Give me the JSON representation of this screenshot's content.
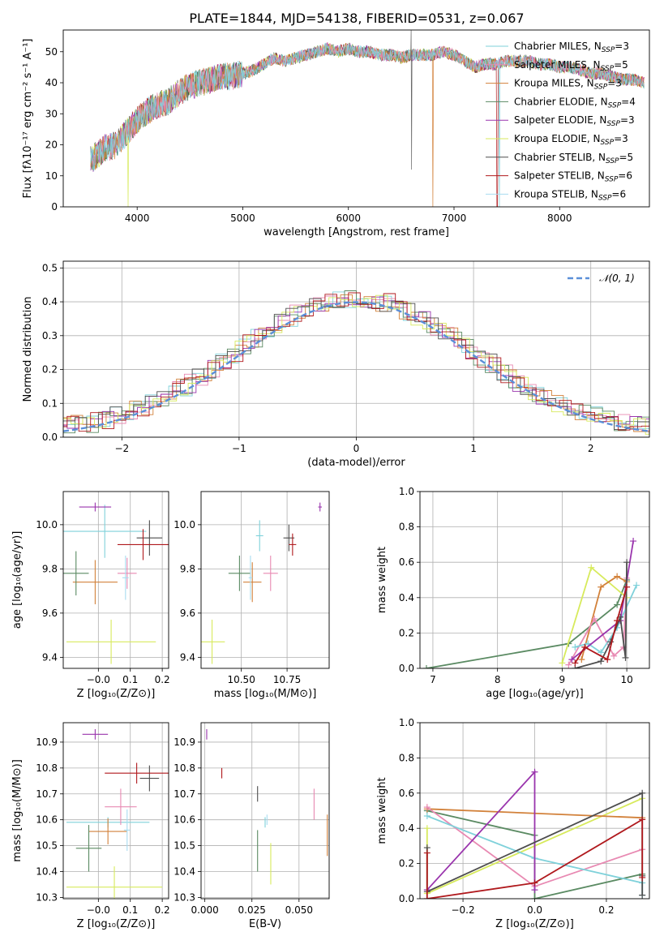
{
  "colors": {
    "c0": "#7fd1da",
    "c1": "#e889b2",
    "c2": "#d2813a",
    "c3": "#5a8a62",
    "c4": "#9a35ad",
    "c5": "#d7ea5c",
    "c6": "#4d4d4d",
    "c7": "#b0191d",
    "c8": "#a8dcf0",
    "gaussian": "#5b8fd8"
  },
  "chart_data": [
    {
      "id": "spectrum",
      "type": "line",
      "title": "PLATE=1844, MJD=54138, FIBERID=0531, z=0.067",
      "xlabel": "wavelength [Angstrom, rest frame]",
      "ylabel": "Flux [fλ10⁻¹⁷ erg cm⁻² s⁻¹ A⁻¹]",
      "xlim": [
        3300,
        8850
      ],
      "ylim": [
        0,
        57
      ],
      "xticks": [
        4000,
        5000,
        6000,
        7000,
        8000
      ],
      "yticks": [
        0,
        10,
        20,
        30,
        40,
        50
      ],
      "legend": "top-right",
      "legend_entries": [
        {
          "main": "Chabrier MILES, N",
          "sub": "SSP",
          "val": "=3",
          "color": "c0"
        },
        {
          "main": "Salpeter MILES, N",
          "sub": "SSP",
          "val": "=5",
          "color": "c1"
        },
        {
          "main": "Kroupa MILES, N",
          "sub": "SSP",
          "val": "=3",
          "color": "c2"
        },
        {
          "main": "Chabrier ELODIE, N",
          "sub": "SSP",
          "val": "=4",
          "color": "c3"
        },
        {
          "main": "Salpeter ELODIE, N",
          "sub": "SSP",
          "val": "=3",
          "color": "c4"
        },
        {
          "main": "Kroupa ELODIE, N",
          "sub": "SSP",
          "val": "=3",
          "color": "c5"
        },
        {
          "main": "Chabrier STELIB, N",
          "sub": "SSP",
          "val": "=5",
          "color": "c6"
        },
        {
          "main": "Salpeter STELIB, N",
          "sub": "SSP",
          "val": "=6",
          "color": "c7"
        },
        {
          "main": "Kroupa STELIB, N",
          "sub": "SSP",
          "val": "=6",
          "color": "c8"
        }
      ],
      "continuum": [
        [
          3560,
          15
        ],
        [
          3700,
          19
        ],
        [
          3800,
          20
        ],
        [
          3900,
          24
        ],
        [
          4000,
          28
        ],
        [
          4100,
          31
        ],
        [
          4200,
          33
        ],
        [
          4300,
          34
        ],
        [
          4400,
          37
        ],
        [
          4500,
          39
        ],
        [
          4600,
          40
        ],
        [
          4700,
          41
        ],
        [
          4800,
          42
        ],
        [
          4900,
          42
        ],
        [
          5000,
          43
        ],
        [
          5100,
          44
        ],
        [
          5200,
          46
        ],
        [
          5300,
          48
        ],
        [
          5400,
          47
        ],
        [
          5500,
          48
        ],
        [
          5600,
          49
        ],
        [
          5700,
          50
        ],
        [
          5800,
          51
        ],
        [
          5900,
          50
        ],
        [
          6000,
          51
        ],
        [
          6100,
          50
        ],
        [
          6200,
          50
        ],
        [
          6300,
          49
        ],
        [
          6400,
          49
        ],
        [
          6500,
          48
        ],
        [
          6600,
          49
        ],
        [
          6700,
          49
        ],
        [
          6800,
          49
        ],
        [
          6900,
          50
        ],
        [
          7000,
          49
        ],
        [
          7100,
          47
        ],
        [
          7200,
          45
        ],
        [
          7300,
          46
        ],
        [
          7400,
          46
        ],
        [
          7500,
          47
        ],
        [
          7600,
          47
        ],
        [
          7700,
          47
        ],
        [
          7800,
          46
        ],
        [
          7900,
          46
        ],
        [
          8000,
          45
        ],
        [
          8100,
          45
        ],
        [
          8200,
          44
        ],
        [
          8300,
          43
        ],
        [
          8400,
          43
        ],
        [
          8500,
          42
        ],
        [
          8600,
          41
        ],
        [
          8700,
          41
        ],
        [
          8800,
          40
        ]
      ]
    },
    {
      "id": "residuals",
      "type": "line",
      "xlabel": "(data-model)/error",
      "ylabel": "Normed distribution",
      "xlim": [
        -2.5,
        2.5
      ],
      "ylim": [
        0,
        0.52
      ],
      "xticks": [
        -2,
        -1,
        0,
        1,
        2
      ],
      "xtick_labels": [
        "−2",
        "−1",
        "0",
        "1",
        "2"
      ],
      "yticks": [
        0.0,
        0.1,
        0.2,
        0.3,
        0.4,
        0.5
      ],
      "ytick_labels": [
        "0.0",
        "0.1",
        "0.2",
        "0.3",
        "0.4",
        "0.5"
      ],
      "legend": "top-right",
      "legend_label": "𝒩(0, 1)"
    },
    {
      "id": "age-vs-Z",
      "type": "scatter",
      "xlabel": "Z [log₁₀(Z/Z⊙)]",
      "ylabel": "age  [log₁₀(age/yr)]",
      "xlim": [
        -0.11,
        0.22
      ],
      "ylim": [
        9.35,
        10.15
      ],
      "xticks": [
        0.0,
        0.1,
        0.2
      ],
      "xtick_labels": [
        "−0.0",
        "0.1",
        "0.2"
      ],
      "yticks": [
        9.4,
        9.6,
        9.8,
        10.0
      ],
      "ytick_labels": [
        "9.4",
        "9.6",
        "9.8",
        "10.0"
      ],
      "points": [
        {
          "color": "c0",
          "x": 0.02,
          "xe": 0.13,
          "y": 9.97,
          "ye": 0.12
        },
        {
          "color": "c1",
          "x": 0.09,
          "xe": 0.03,
          "y": 9.78,
          "ye": 0.07
        },
        {
          "color": "c2",
          "x": -0.01,
          "xe": 0.07,
          "y": 9.74,
          "ye": 0.1
        },
        {
          "color": "c3",
          "x": -0.07,
          "xe": 0.04,
          "y": 9.78,
          "ye": 0.1
        },
        {
          "color": "c4",
          "x": -0.01,
          "xe": 0.05,
          "y": 10.08,
          "ye": 0.02
        },
        {
          "color": "c5",
          "x": 0.04,
          "xe": 0.14,
          "y": 9.47,
          "ye": 0.1
        },
        {
          "color": "c6",
          "x": 0.16,
          "xe": 0.04,
          "y": 9.94,
          "ye": 0.08
        },
        {
          "color": "c7",
          "x": 0.14,
          "xe": 0.08,
          "y": 9.91,
          "ye": 0.07
        },
        {
          "color": "c8",
          "x": 0.085,
          "xe": 0.01,
          "y": 9.76,
          "ye": 0.1
        }
      ]
    },
    {
      "id": "age-vs-mass",
      "type": "scatter",
      "xlabel": "mass [log₁₀(M/M⊙)]",
      "ylabel": "",
      "xlim": [
        10.28,
        10.98
      ],
      "ylim": [
        9.35,
        10.15
      ],
      "xticks": [
        10.5,
        10.75
      ],
      "xtick_labels": [
        "10.50",
        "10.75"
      ],
      "yticks": [
        9.4,
        9.6,
        9.8,
        10.0
      ],
      "ytick_labels": [
        "9.4",
        "9.6",
        "9.8",
        "10.0"
      ],
      "points": [
        {
          "color": "c0",
          "x": 10.6,
          "xe": 0.02,
          "y": 9.95,
          "ye": 0.07
        },
        {
          "color": "c1",
          "x": 10.66,
          "xe": 0.04,
          "y": 9.78,
          "ye": 0.08
        },
        {
          "color": "c2",
          "x": 10.56,
          "xe": 0.05,
          "y": 9.74,
          "ye": 0.09
        },
        {
          "color": "c3",
          "x": 10.49,
          "xe": 0.06,
          "y": 9.78,
          "ye": 0.08
        },
        {
          "color": "c4",
          "x": 10.93,
          "xe": 0.01,
          "y": 10.08,
          "ye": 0.02
        },
        {
          "color": "c5",
          "x": 10.34,
          "xe": 0.07,
          "y": 9.47,
          "ye": 0.1
        },
        {
          "color": "c6",
          "x": 10.76,
          "xe": 0.03,
          "y": 9.94,
          "ye": 0.06
        },
        {
          "color": "c7",
          "x": 10.78,
          "xe": 0.02,
          "y": 9.91,
          "ye": 0.05
        },
        {
          "color": "c8",
          "x": 10.55,
          "xe": 0.01,
          "y": 9.76,
          "ye": 0.1
        }
      ]
    },
    {
      "id": "weight-vs-age",
      "type": "line",
      "xlabel": "age  [log₁₀(age/yr)]",
      "ylabel": "mass weight",
      "xlim": [
        6.8,
        10.35
      ],
      "ylim": [
        0,
        1.0
      ],
      "xticks": [
        7,
        8,
        9,
        10
      ],
      "xtick_labels": [
        "7",
        "8",
        "9",
        "10"
      ],
      "yticks": [
        0.0,
        0.2,
        0.4,
        0.6,
        0.8,
        1.0
      ],
      "ytick_labels": [
        "0.0",
        "0.2",
        "0.4",
        "0.6",
        "0.8",
        "1.0"
      ],
      "series": [
        {
          "color": "c3",
          "x": [
            6.9,
            9.1,
            9.85,
            10.0
          ],
          "y": [
            0.0,
            0.14,
            0.36,
            0.5
          ]
        },
        {
          "color": "c5",
          "x": [
            9.0,
            9.45,
            10.0
          ],
          "y": [
            0.03,
            0.57,
            0.4
          ]
        },
        {
          "color": "c2",
          "x": [
            9.3,
            9.6,
            9.85,
            10.0
          ],
          "y": [
            0.05,
            0.46,
            0.52,
            0.49
          ]
        },
        {
          "color": "c1",
          "x": [
            9.1,
            9.5,
            9.8,
            9.95,
            10.0
          ],
          "y": [
            0.02,
            0.28,
            0.07,
            0.12,
            0.51
          ]
        },
        {
          "color": "c0",
          "x": [
            9.2,
            9.4,
            9.6,
            9.85,
            10.15
          ],
          "y": [
            0.12,
            0.14,
            0.09,
            0.23,
            0.47
          ]
        },
        {
          "color": "c4",
          "x": [
            9.15,
            9.9,
            10.1
          ],
          "y": [
            0.05,
            0.27,
            0.72
          ]
        },
        {
          "color": "c6",
          "x": [
            9.2,
            9.6,
            9.75,
            9.9,
            9.98,
            10.0
          ],
          "y": [
            0.0,
            0.04,
            0.15,
            0.29,
            0.06,
            0.6
          ]
        },
        {
          "color": "c7",
          "x": [
            9.2,
            9.35,
            9.7,
            9.85,
            10.0
          ],
          "y": [
            0.03,
            0.12,
            0.05,
            0.27,
            0.46
          ]
        }
      ]
    },
    {
      "id": "mass-vs-Z",
      "type": "scatter",
      "xlabel": "Z [log₁₀(Z/Z⊙)]",
      "ylabel": "mass [log₁₀(M/M⊙)]",
      "xlim": [
        -0.11,
        0.22
      ],
      "ylim": [
        10.295,
        10.975
      ],
      "xticks": [
        0.0,
        0.1,
        0.2
      ],
      "xtick_labels": [
        "−0.0",
        "0.1",
        "0.2"
      ],
      "yticks": [
        10.3,
        10.4,
        10.5,
        10.6,
        10.7,
        10.8,
        10.9
      ],
      "ytick_labels": [
        "10.3",
        "10.4",
        "10.5",
        "10.6",
        "10.7",
        "10.8",
        "10.9"
      ],
      "points": [
        {
          "color": "c0",
          "x": 0.03,
          "xe": 0.13,
          "y": 10.59,
          "ye": 0.02
        },
        {
          "color": "c1",
          "x": 0.07,
          "xe": 0.05,
          "y": 10.65,
          "ye": 0.07
        },
        {
          "color": "c2",
          "x": 0.03,
          "xe": 0.06,
          "y": 10.555,
          "ye": 0.05
        },
        {
          "color": "c3",
          "x": -0.03,
          "xe": 0.04,
          "y": 10.49,
          "ye": 0.09
        },
        {
          "color": "c4",
          "x": -0.01,
          "xe": 0.04,
          "y": 10.93,
          "ye": 0.02
        },
        {
          "color": "c5",
          "x": 0.05,
          "xe": 0.15,
          "y": 10.34,
          "ye": 0.08
        },
        {
          "color": "c6",
          "x": 0.16,
          "xe": 0.03,
          "y": 10.76,
          "ye": 0.05
        },
        {
          "color": "c7",
          "x": 0.12,
          "xe": 0.1,
          "y": 10.78,
          "ye": 0.04
        },
        {
          "color": "c8",
          "x": 0.09,
          "xe": 0.01,
          "y": 10.56,
          "ye": 0.08
        }
      ]
    },
    {
      "id": "mass-vs-EBV",
      "type": "scatter",
      "xlabel": "E(B-V)",
      "ylabel": "",
      "xlim": [
        -0.002,
        0.066
      ],
      "ylim": [
        10.295,
        10.975
      ],
      "xticks": [
        0.0,
        0.025,
        0.05
      ],
      "xtick_labels": [
        "0.000",
        "0.025",
        "0.050"
      ],
      "yticks": [
        10.3,
        10.4,
        10.5,
        10.6,
        10.7,
        10.8,
        10.9
      ],
      "ytick_labels": [
        "10.3",
        "10.4",
        "10.5",
        "10.6",
        "10.7",
        "10.8",
        "10.9"
      ],
      "points": [
        {
          "color": "c0",
          "x": 0.032,
          "y": 10.59,
          "ye": 0.02
        },
        {
          "color": "c1",
          "x": 0.058,
          "y": 10.66,
          "ye": 0.06
        },
        {
          "color": "c2",
          "x": 0.065,
          "y": 10.54,
          "ye": 0.08
        },
        {
          "color": "c3",
          "x": 0.028,
          "y": 10.48,
          "ye": 0.08
        },
        {
          "color": "c4",
          "x": 0.001,
          "y": 10.93,
          "ye": 0.02
        },
        {
          "color": "c5",
          "x": 0.035,
          "y": 10.43,
          "ye": 0.08
        },
        {
          "color": "c6",
          "x": 0.028,
          "y": 10.7,
          "ye": 0.03
        },
        {
          "color": "c7",
          "x": 0.009,
          "y": 10.78,
          "ye": 0.02
        },
        {
          "color": "c8",
          "x": 0.033,
          "y": 10.6,
          "ye": 0.02
        }
      ]
    },
    {
      "id": "weight-vs-Z",
      "type": "line",
      "xlabel": "Z [log₁₀(Z/Z⊙)]",
      "ylabel": "mass weight",
      "xlim": [
        -0.32,
        0.32
      ],
      "ylim": [
        0,
        1.0
      ],
      "xticks": [
        -0.2,
        0.0,
        0.2
      ],
      "xtick_labels": [
        "−0.2",
        "0.0",
        "0.2"
      ],
      "yticks": [
        0.0,
        0.2,
        0.4,
        0.6,
        0.8,
        1.0
      ],
      "ytick_labels": [
        "0.0",
        "0.2",
        "0.4",
        "0.6",
        "0.8",
        "1.0"
      ],
      "series": [
        {
          "color": "c3",
          "x": [
            -0.3,
            0.0,
            0.0,
            0.3
          ],
          "y": [
            0.5,
            0.36,
            0.0,
            0.14
          ]
        },
        {
          "color": "c5",
          "x": [
            -0.3,
            -0.3,
            0.3
          ],
          "y": [
            0.4,
            0.03,
            0.57
          ]
        },
        {
          "color": "c2",
          "x": [
            -0.3,
            0.3
          ],
          "y": [
            0.51,
            0.46
          ]
        },
        {
          "color": "c1",
          "x": [
            -0.3,
            0.0,
            0.3
          ],
          "y": [
            0.52,
            0.07,
            0.28
          ]
        },
        {
          "color": "c0",
          "x": [
            -0.3,
            0.0,
            0.3,
            0.3
          ],
          "y": [
            0.47,
            0.23,
            0.09,
            0.02
          ]
        },
        {
          "color": "c4",
          "x": [
            -0.3,
            0.0,
            0.0
          ],
          "y": [
            0.05,
            0.72,
            0.05
          ]
        },
        {
          "color": "c6",
          "x": [
            -0.3,
            -0.3,
            0.3,
            0.3,
            0.3
          ],
          "y": [
            0.29,
            0.04,
            0.6,
            0.13,
            0.02
          ]
        },
        {
          "color": "c7",
          "x": [
            -0.3,
            -0.3,
            0.0,
            0.3,
            0.3
          ],
          "y": [
            0.26,
            0.0,
            0.09,
            0.45,
            0.12
          ]
        }
      ]
    }
  ]
}
